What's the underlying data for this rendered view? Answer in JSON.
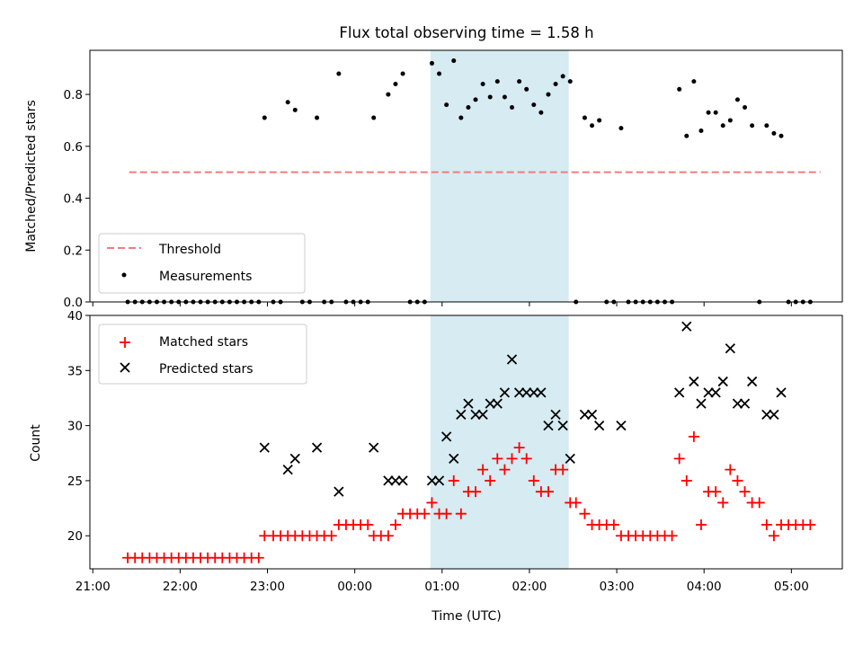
{
  "chart_data": [
    {
      "panel": "top",
      "type": "scatter",
      "title": "Flux total observing time = 1.58 h",
      "xlabel": "",
      "ylabel": "Matched/Predicted stars",
      "ylim": [
        0,
        0.97
      ],
      "yticks": [
        "0.0",
        "0.2",
        "0.4",
        "0.6",
        "0.8"
      ],
      "grid": false,
      "highlight_span": {
        "start": "00:52",
        "end": "02:27",
        "color": "#add8e6"
      },
      "threshold": {
        "name": "Threshold",
        "value": 0.5,
        "x_start": "21:25",
        "x_end": "05:20",
        "color": "#f47b7b",
        "style": "dashed"
      },
      "series": [
        {
          "name": "Measurements",
          "marker": "dot",
          "color": "#000000",
          "points": [
            [
              "21:24",
              0
            ],
            [
              "21:29",
              0
            ],
            [
              "21:34",
              0
            ],
            [
              "21:39",
              0
            ],
            [
              "21:44",
              0
            ],
            [
              "21:49",
              0
            ],
            [
              "21:54",
              0
            ],
            [
              "21:59",
              0
            ],
            [
              "22:04",
              0
            ],
            [
              "22:09",
              0
            ],
            [
              "22:14",
              0
            ],
            [
              "22:19",
              0
            ],
            [
              "22:24",
              0
            ],
            [
              "22:29",
              0
            ],
            [
              "22:34",
              0
            ],
            [
              "22:39",
              0
            ],
            [
              "22:44",
              0
            ],
            [
              "22:49",
              0
            ],
            [
              "22:54",
              0
            ],
            [
              "22:58",
              0.71
            ],
            [
              "23:04",
              0
            ],
            [
              "23:09",
              0
            ],
            [
              "23:14",
              0.77
            ],
            [
              "23:19",
              0.74
            ],
            [
              "23:24",
              0
            ],
            [
              "23:29",
              0
            ],
            [
              "23:34",
              0.71
            ],
            [
              "23:39",
              0
            ],
            [
              "23:44",
              0
            ],
            [
              "23:49",
              0.88
            ],
            [
              "23:54",
              0
            ],
            [
              "23:59",
              0
            ],
            [
              "00:04",
              0
            ],
            [
              "00:09",
              0
            ],
            [
              "00:13",
              0.71
            ],
            [
              "00:23",
              0.8
            ],
            [
              "00:28",
              0.84
            ],
            [
              "00:33",
              0.88
            ],
            [
              "00:38",
              0
            ],
            [
              "00:43",
              0
            ],
            [
              "00:48",
              0
            ],
            [
              "00:53",
              0.92
            ],
            [
              "00:58",
              0.88
            ],
            [
              "01:03",
              0.76
            ],
            [
              "01:08",
              0.93
            ],
            [
              "01:13",
              0.71
            ],
            [
              "01:18",
              0.75
            ],
            [
              "01:23",
              0.78
            ],
            [
              "01:28",
              0.84
            ],
            [
              "01:33",
              0.79
            ],
            [
              "01:38",
              0.85
            ],
            [
              "01:43",
              0.79
            ],
            [
              "01:48",
              0.75
            ],
            [
              "01:53",
              0.85
            ],
            [
              "01:58",
              0.82
            ],
            [
              "02:03",
              0.76
            ],
            [
              "02:08",
              0.73
            ],
            [
              "02:13",
              0.8
            ],
            [
              "02:18",
              0.84
            ],
            [
              "02:23",
              0.87
            ],
            [
              "02:28",
              0.85
            ],
            [
              "02:32",
              0
            ],
            [
              "02:38",
              0.71
            ],
            [
              "02:43",
              0.68
            ],
            [
              "02:48",
              0.7
            ],
            [
              "02:53",
              0
            ],
            [
              "02:58",
              0
            ],
            [
              "03:03",
              0.67
            ],
            [
              "03:08",
              0
            ],
            [
              "03:13",
              0
            ],
            [
              "03:18",
              0
            ],
            [
              "03:23",
              0
            ],
            [
              "03:28",
              0
            ],
            [
              "03:33",
              0
            ],
            [
              "03:38",
              0
            ],
            [
              "03:43",
              0.82
            ],
            [
              "03:48",
              0.64
            ],
            [
              "03:53",
              0.85
            ],
            [
              "03:58",
              0.66
            ],
            [
              "04:03",
              0.73
            ],
            [
              "04:08",
              0.73
            ],
            [
              "04:13",
              0.68
            ],
            [
              "04:18",
              0.7
            ],
            [
              "04:23",
              0.78
            ],
            [
              "04:28",
              0.75
            ],
            [
              "04:33",
              0.68
            ],
            [
              "04:38",
              0
            ],
            [
              "04:43",
              0.68
            ],
            [
              "04:48",
              0.65
            ],
            [
              "04:53",
              0.64
            ],
            [
              "04:58",
              0
            ],
            [
              "05:03",
              0
            ],
            [
              "05:08",
              0
            ],
            [
              "05:13",
              0
            ]
          ]
        }
      ],
      "legend": {
        "placement": "lower-left",
        "entries": [
          "Threshold",
          "Measurements"
        ]
      }
    },
    {
      "panel": "bottom",
      "type": "scatter",
      "title": "",
      "xlabel": "Time (UTC)",
      "ylabel": "Count",
      "ylim": [
        17,
        40
      ],
      "yticks": [
        "20",
        "25",
        "30",
        "35",
        "40"
      ],
      "xticks": [
        "21:00",
        "22:00",
        "23:00",
        "00:00",
        "01:00",
        "02:00",
        "03:00",
        "04:00",
        "05:00"
      ],
      "xrange": [
        "20:58",
        "05:35"
      ],
      "grid": false,
      "highlight_span": {
        "start": "00:52",
        "end": "02:27",
        "color": "#add8e6"
      },
      "series": [
        {
          "name": "Matched stars",
          "marker": "plus",
          "color": "#ff0000",
          "points": [
            [
              "21:24",
              18
            ],
            [
              "21:29",
              18
            ],
            [
              "21:34",
              18
            ],
            [
              "21:39",
              18
            ],
            [
              "21:44",
              18
            ],
            [
              "21:49",
              18
            ],
            [
              "21:54",
              18
            ],
            [
              "21:59",
              18
            ],
            [
              "22:04",
              18
            ],
            [
              "22:09",
              18
            ],
            [
              "22:14",
              18
            ],
            [
              "22:19",
              18
            ],
            [
              "22:24",
              18
            ],
            [
              "22:29",
              18
            ],
            [
              "22:34",
              18
            ],
            [
              "22:39",
              18
            ],
            [
              "22:44",
              18
            ],
            [
              "22:49",
              18
            ],
            [
              "22:54",
              18
            ],
            [
              "22:58",
              20
            ],
            [
              "23:04",
              20
            ],
            [
              "23:09",
              20
            ],
            [
              "23:14",
              20
            ],
            [
              "23:19",
              20
            ],
            [
              "23:24",
              20
            ],
            [
              "23:29",
              20
            ],
            [
              "23:34",
              20
            ],
            [
              "23:39",
              20
            ],
            [
              "23:44",
              20
            ],
            [
              "23:49",
              21
            ],
            [
              "23:54",
              21
            ],
            [
              "23:59",
              21
            ],
            [
              "00:04",
              21
            ],
            [
              "00:09",
              21
            ],
            [
              "00:13",
              20
            ],
            [
              "00:18",
              20
            ],
            [
              "00:23",
              20
            ],
            [
              "00:28",
              21
            ],
            [
              "00:33",
              22
            ],
            [
              "00:38",
              22
            ],
            [
              "00:43",
              22
            ],
            [
              "00:48",
              22
            ],
            [
              "00:53",
              23
            ],
            [
              "00:58",
              22
            ],
            [
              "01:03",
              22
            ],
            [
              "01:08",
              25
            ],
            [
              "01:13",
              22
            ],
            [
              "01:18",
              24
            ],
            [
              "01:23",
              24
            ],
            [
              "01:28",
              26
            ],
            [
              "01:33",
              25
            ],
            [
              "01:38",
              27
            ],
            [
              "01:43",
              26
            ],
            [
              "01:48",
              27
            ],
            [
              "01:53",
              28
            ],
            [
              "01:58",
              27
            ],
            [
              "02:03",
              25
            ],
            [
              "02:08",
              24
            ],
            [
              "02:13",
              24
            ],
            [
              "02:18",
              26
            ],
            [
              "02:23",
              26
            ],
            [
              "02:28",
              23
            ],
            [
              "02:32",
              23
            ],
            [
              "02:38",
              22
            ],
            [
              "02:43",
              21
            ],
            [
              "02:48",
              21
            ],
            [
              "02:53",
              21
            ],
            [
              "02:58",
              21
            ],
            [
              "03:03",
              20
            ],
            [
              "03:08",
              20
            ],
            [
              "03:13",
              20
            ],
            [
              "03:18",
              20
            ],
            [
              "03:23",
              20
            ],
            [
              "03:28",
              20
            ],
            [
              "03:33",
              20
            ],
            [
              "03:38",
              20
            ],
            [
              "03:43",
              27
            ],
            [
              "03:48",
              25
            ],
            [
              "03:53",
              29
            ],
            [
              "03:58",
              21
            ],
            [
              "04:03",
              24
            ],
            [
              "04:08",
              24
            ],
            [
              "04:13",
              23
            ],
            [
              "04:18",
              26
            ],
            [
              "04:23",
              25
            ],
            [
              "04:28",
              24
            ],
            [
              "04:33",
              23
            ],
            [
              "04:38",
              23
            ],
            [
              "04:43",
              21
            ],
            [
              "04:48",
              20
            ],
            [
              "04:53",
              21
            ],
            [
              "04:58",
              21
            ],
            [
              "05:03",
              21
            ],
            [
              "05:08",
              21
            ],
            [
              "05:13",
              21
            ]
          ]
        },
        {
          "name": "Predicted stars",
          "marker": "x",
          "color": "#000000",
          "points": [
            [
              "22:58",
              28
            ],
            [
              "23:14",
              26
            ],
            [
              "23:19",
              27
            ],
            [
              "23:34",
              28
            ],
            [
              "23:49",
              24
            ],
            [
              "00:13",
              28
            ],
            [
              "00:23",
              25
            ],
            [
              "00:28",
              25
            ],
            [
              "00:33",
              25
            ],
            [
              "00:53",
              25
            ],
            [
              "00:58",
              25
            ],
            [
              "01:03",
              29
            ],
            [
              "01:08",
              27
            ],
            [
              "01:13",
              31
            ],
            [
              "01:18",
              32
            ],
            [
              "01:23",
              31
            ],
            [
              "01:28",
              31
            ],
            [
              "01:33",
              32
            ],
            [
              "01:38",
              32
            ],
            [
              "01:43",
              33
            ],
            [
              "01:48",
              36
            ],
            [
              "01:53",
              33
            ],
            [
              "01:58",
              33
            ],
            [
              "02:03",
              33
            ],
            [
              "02:08",
              33
            ],
            [
              "02:13",
              30
            ],
            [
              "02:18",
              31
            ],
            [
              "02:23",
              30
            ],
            [
              "02:28",
              27
            ],
            [
              "02:38",
              31
            ],
            [
              "02:43",
              31
            ],
            [
              "02:48",
              30
            ],
            [
              "03:03",
              30
            ],
            [
              "03:43",
              33
            ],
            [
              "03:48",
              39
            ],
            [
              "03:53",
              34
            ],
            [
              "03:58",
              32
            ],
            [
              "04:03",
              33
            ],
            [
              "04:08",
              33
            ],
            [
              "04:13",
              34
            ],
            [
              "04:18",
              37
            ],
            [
              "04:23",
              32
            ],
            [
              "04:28",
              32
            ],
            [
              "04:33",
              34
            ],
            [
              "04:43",
              31
            ],
            [
              "04:48",
              31
            ],
            [
              "04:53",
              33
            ]
          ]
        }
      ],
      "legend": {
        "placement": "top-left",
        "entries": [
          "Matched stars",
          "Predicted stars"
        ]
      }
    }
  ]
}
